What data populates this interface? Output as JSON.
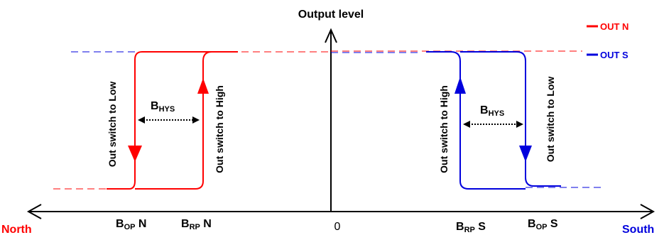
{
  "title": "Output level",
  "axis": {
    "left_label": "North",
    "right_label": "South",
    "origin_label": "0"
  },
  "legend": {
    "out_n": "OUT N",
    "out_s": "OUT S"
  },
  "colors": {
    "out_n": "#ff0000",
    "out_s": "#0000dd",
    "north_label": "#ff0000",
    "south_label": "#0000dd",
    "axis": "#000000"
  },
  "north_loop": {
    "switch_low": "Out switch to Low",
    "switch_high": "Out switch to High",
    "hys_main": "B",
    "hys_sub": "HYS",
    "bop_main": "B",
    "bop_sub": "OP",
    "bop_suffix": " N",
    "brp_main": "B",
    "brp_sub": "RP",
    "brp_suffix": " N"
  },
  "south_loop": {
    "switch_high": "Out switch to High",
    "switch_low": "Out switch to Low",
    "hys_main": "B",
    "hys_sub": "HYS",
    "brp_main": "B",
    "brp_sub": "RP",
    "brp_suffix": " S",
    "bop_main": "B",
    "bop_sub": "OP",
    "bop_suffix": " S"
  }
}
